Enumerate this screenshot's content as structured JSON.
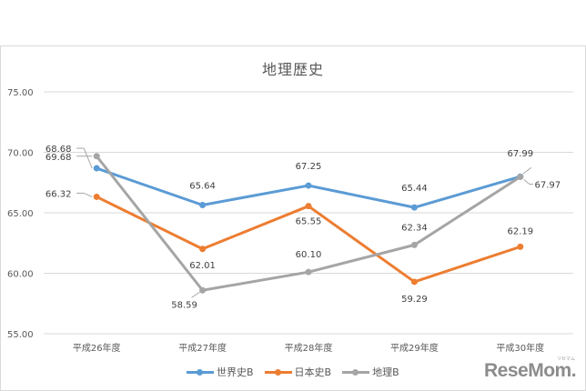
{
  "chart_data": {
    "type": "line",
    "title": "地理歴史",
    "xlabel": "",
    "ylabel": "",
    "categories": [
      "平成26年度",
      "平成27年度",
      "平成28年度",
      "平成29年度",
      "平成30年度"
    ],
    "ylim": [
      55,
      75
    ],
    "yticks": [
      "75.00",
      "70.00",
      "65.00",
      "60.00",
      "55.00"
    ],
    "grid": true,
    "legend_position": "bottom",
    "series": [
      {
        "name": "世界史B",
        "color": "#5b9bd5",
        "values": [
          68.68,
          65.64,
          67.25,
          65.44,
          67.99
        ],
        "labels": [
          "68.68",
          "65.64",
          "67.25",
          "65.44",
          "67.99"
        ]
      },
      {
        "name": "日本史B",
        "color": "#ed7d31",
        "values": [
          66.32,
          62.01,
          65.55,
          59.29,
          62.19
        ],
        "labels": [
          "66.32",
          "62.01",
          "65.55",
          "59.29",
          "62.19"
        ]
      },
      {
        "name": "地理B",
        "color": "#a5a5a5",
        "values": [
          69.68,
          58.59,
          60.1,
          62.34,
          67.97
        ],
        "labels": [
          "69.68",
          "58.59",
          "60.10",
          "62.34",
          "67.97"
        ]
      }
    ]
  },
  "legend": {
    "items": [
      {
        "label": "世界史B",
        "color": "#5b9bd5"
      },
      {
        "label": "日本史B",
        "color": "#ed7d31"
      },
      {
        "label": "地理B",
        "color": "#a5a5a5"
      }
    ]
  },
  "watermark": {
    "text": "ReseMom.",
    "sub": "リセマム"
  }
}
